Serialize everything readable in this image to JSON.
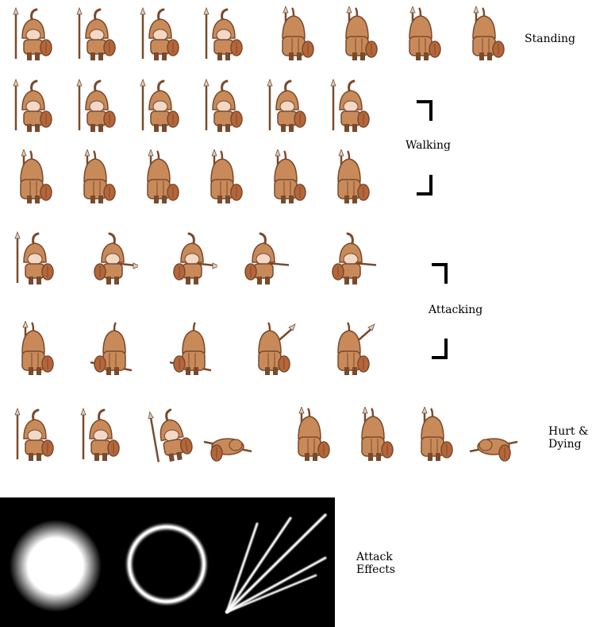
{
  "labels": {
    "standing": "Standing",
    "walking": "Walking",
    "attacking": "Attacking",
    "hurt_line1": "Hurt &",
    "hurt_line2": "Dying",
    "effects_line1": "Attack",
    "effects_line2": "Effects"
  },
  "colors": {
    "armor": "#c98a5a",
    "armor_dark": "#7a4a2c",
    "skin": "#f2d8c6",
    "shield": "#b5663a",
    "spear": "#d8d0c0"
  },
  "rows": [
    {
      "name": "standing",
      "frames": [
        {
          "pose": "front-spear",
          "facing": "right"
        },
        {
          "pose": "front-spear",
          "facing": "right"
        },
        {
          "pose": "front-spear",
          "facing": "right"
        },
        {
          "pose": "front-spear",
          "facing": "right"
        },
        {
          "pose": "back",
          "facing": "left"
        },
        {
          "pose": "back",
          "facing": "left"
        },
        {
          "pose": "back",
          "facing": "left"
        },
        {
          "pose": "back",
          "facing": "left"
        }
      ]
    },
    {
      "name": "walking-front",
      "frames": [
        {
          "pose": "front-spear",
          "facing": "right"
        },
        {
          "pose": "front-spear",
          "facing": "right"
        },
        {
          "pose": "front-spear",
          "facing": "right"
        },
        {
          "pose": "front-spear",
          "facing": "right"
        },
        {
          "pose": "front-spear",
          "facing": "right"
        },
        {
          "pose": "front-spear",
          "facing": "right"
        }
      ]
    },
    {
      "name": "walking-back",
      "frames": [
        {
          "pose": "back",
          "facing": "left"
        },
        {
          "pose": "back",
          "facing": "left"
        },
        {
          "pose": "back",
          "facing": "left"
        },
        {
          "pose": "back",
          "facing": "left"
        },
        {
          "pose": "back",
          "facing": "left"
        },
        {
          "pose": "back",
          "facing": "left"
        }
      ]
    },
    {
      "name": "attacking-front",
      "frames": [
        {
          "pose": "front-spear",
          "facing": "right"
        },
        {
          "pose": "thrust",
          "facing": "left"
        },
        {
          "pose": "thrust",
          "facing": "left"
        },
        {
          "pose": "thrust-long",
          "facing": "left"
        },
        {
          "pose": "thrust-long",
          "facing": "left"
        }
      ]
    },
    {
      "name": "attacking-back",
      "frames": [
        {
          "pose": "back",
          "facing": "left"
        },
        {
          "pose": "back-swing",
          "facing": "right"
        },
        {
          "pose": "back-swing",
          "facing": "right"
        },
        {
          "pose": "back-raise",
          "facing": "left"
        },
        {
          "pose": "back-raise",
          "facing": "left"
        }
      ]
    },
    {
      "name": "hurt-dying",
      "frames": [
        {
          "pose": "front-spear",
          "facing": "right"
        },
        {
          "pose": "front-spear",
          "facing": "right"
        },
        {
          "pose": "hurt",
          "facing": "right"
        },
        {
          "pose": "fallen",
          "facing": "left"
        },
        {
          "pose": "back",
          "facing": "left"
        },
        {
          "pose": "back",
          "facing": "left"
        },
        {
          "pose": "back",
          "facing": "left"
        },
        {
          "pose": "fallen-back",
          "facing": "right"
        }
      ]
    }
  ],
  "effects": [
    {
      "name": "glow-orb"
    },
    {
      "name": "ring"
    },
    {
      "name": "spear-streaks"
    }
  ]
}
